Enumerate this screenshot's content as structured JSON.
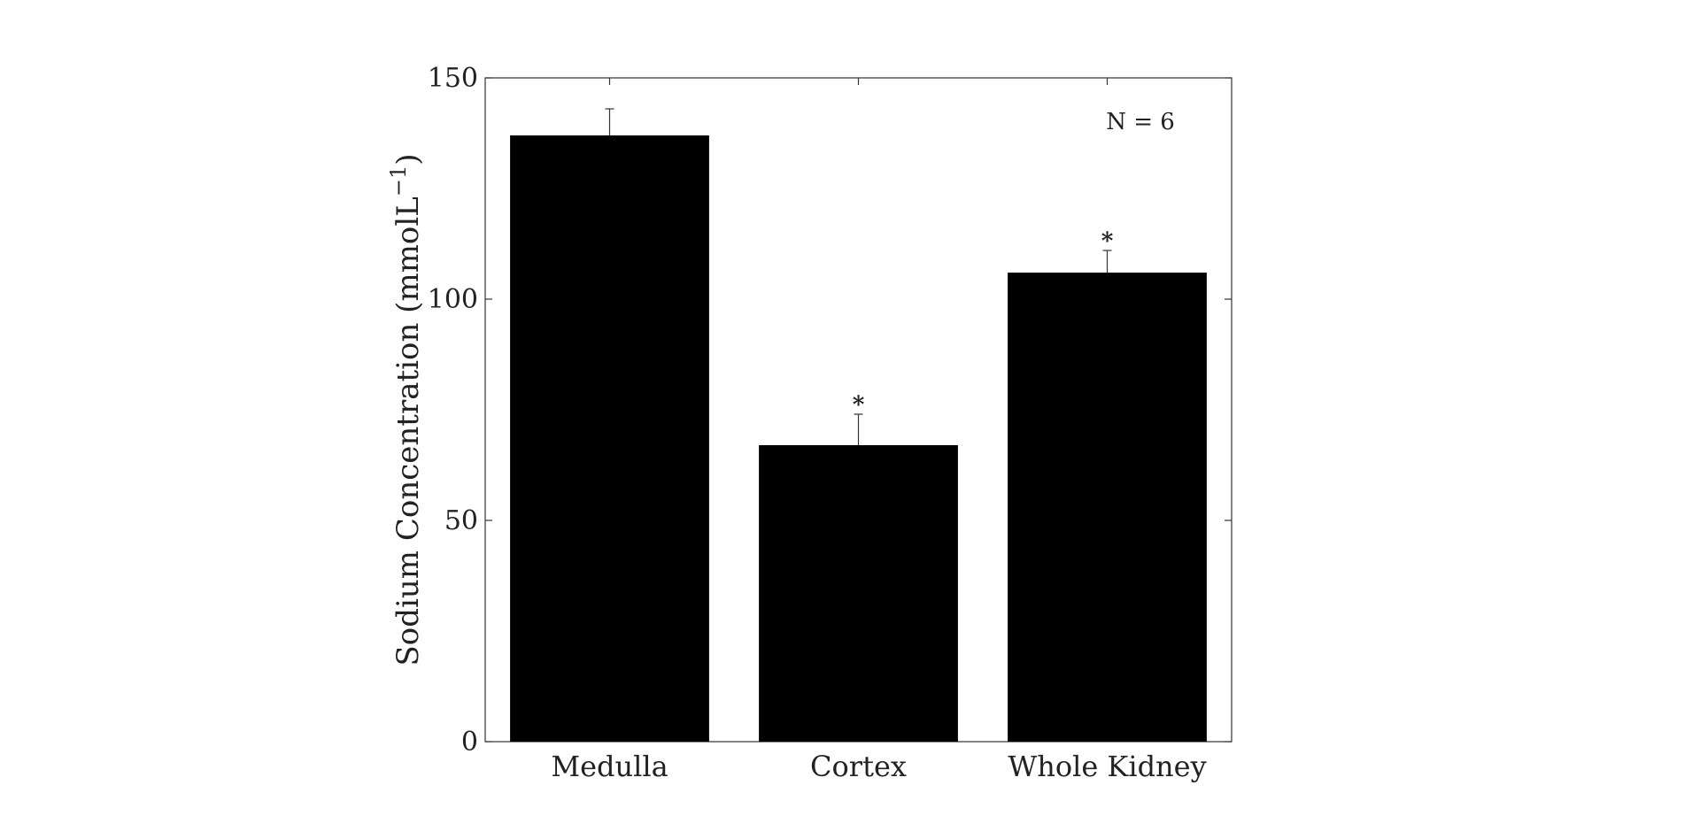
{
  "chart_data": {
    "type": "bar",
    "categories": [
      "Medulla",
      "Cortex",
      "Whole Kidney"
    ],
    "values": [
      137,
      67,
      106
    ],
    "errors": [
      6,
      7,
      5
    ],
    "significance": [
      "",
      "*",
      "*"
    ],
    "ylabel_main": "Sodium Concentration (mmolL",
    "ylabel_sup": "−1",
    "ylabel_close": ")",
    "xlabel": "",
    "ylim": [
      0,
      150
    ],
    "yticks": [
      0,
      50,
      100,
      150
    ],
    "ytick_labels": [
      "0",
      "50",
      "100",
      "150"
    ],
    "annotation": "N = 6",
    "legend": "none",
    "grid": false,
    "bar_color": "#000000",
    "axis_color": "#333333"
  }
}
